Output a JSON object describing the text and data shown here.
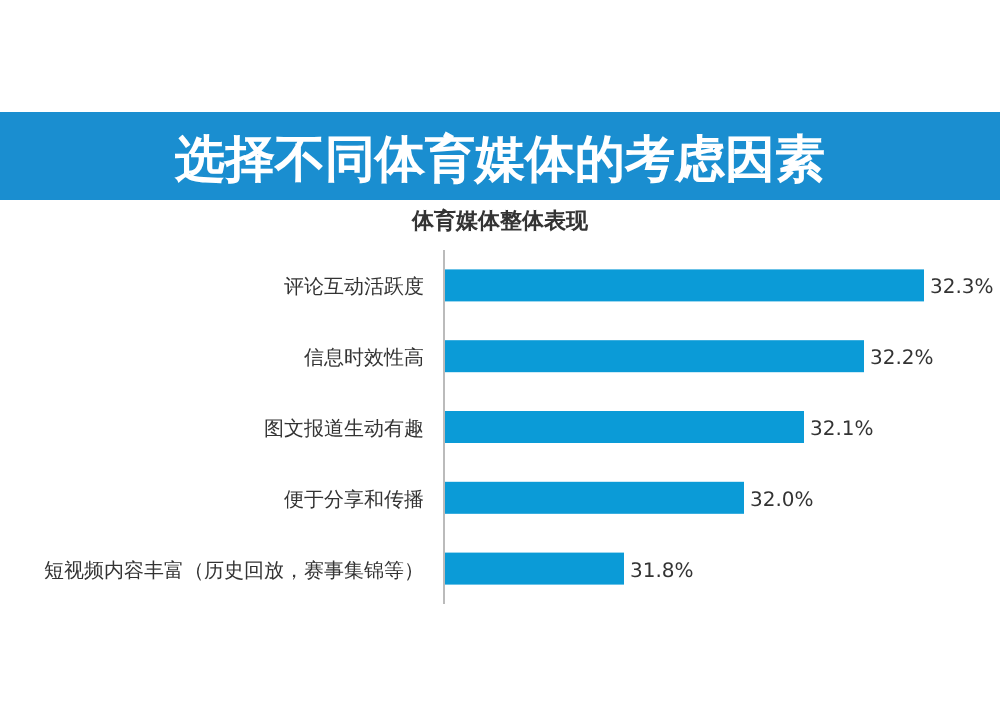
{
  "chart_data": {
    "type": "bar",
    "orientation": "horizontal",
    "title": "选择不同体育媒体的考虑因素",
    "subtitle": "体育媒体整体表现",
    "categories": [
      "评论互动活跃度",
      "信息时效性高",
      "图文报道生动有趣",
      "便于分享和传播",
      "短视频内容丰富（历史回放，赛事集锦等）"
    ],
    "values": [
      32.3,
      32.2,
      32.1,
      32.0,
      31.8
    ],
    "value_labels": [
      "32.3%",
      "32.2%",
      "32.1%",
      "32.0%",
      "31.8%"
    ],
    "color": "#0b9bd7",
    "xlim": [
      31.5,
      32.3
    ],
    "tick_labels": "y"
  }
}
